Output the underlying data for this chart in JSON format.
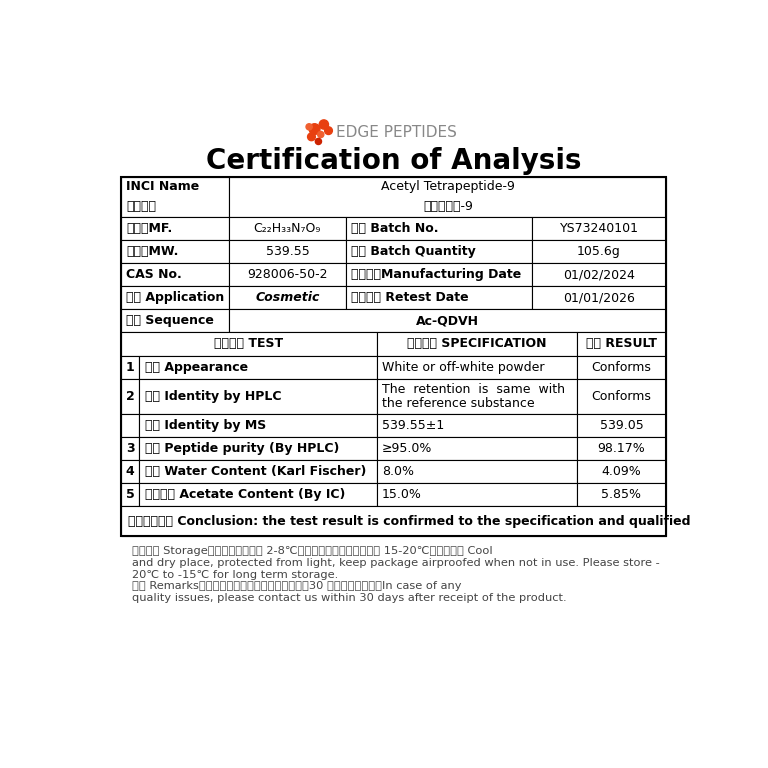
{
  "title": "Certification of Analysis",
  "logo_text": "EDGE PEPTIDES",
  "background_color": "#ffffff",
  "conclusion": "符合企业标准 Conclusion: the test result is confirmed to the specification and qualified",
  "storage_line1": "储存条件 Storage：密封避光保存于 2-8℃干燥处，长期保存建议零下 15-20℃冷冻储存。 Cool",
  "storage_line2": "and dry place, protected from light, keep package airproofed when not in use. Please store -",
  "storage_line3": "20℃ to -15℃ for long term storage.",
  "remarks_line1": "备注 Remarks：如遇质量问题，请于收到产品日赵30 日内与我们联系。In case of any",
  "remarks_line2": "quality issues, please contact us within 30 days after receipt of the product.",
  "dot_positions": [
    [
      282,
      720,
      7,
      "#e84010"
    ],
    [
      294,
      726,
      6,
      "#e84010"
    ],
    [
      278,
      710,
      5,
      "#e84010"
    ],
    [
      290,
      713,
      4,
      "#f06030"
    ],
    [
      300,
      718,
      5,
      "#e84010"
    ],
    [
      275,
      723,
      4,
      "#f06030"
    ],
    [
      287,
      704,
      4,
      "#cc2200"
    ]
  ]
}
